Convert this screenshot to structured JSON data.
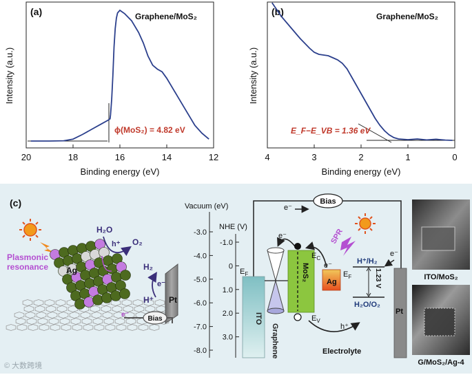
{
  "chart_data": [
    {
      "type": "line",
      "panel": "(a)",
      "title": "Graphene/MoS₂",
      "xlabel": "Binding energy (eV)",
      "ylabel": "Intensity (a.u.)",
      "xlim": [
        20,
        12
      ],
      "x_reversed": true,
      "xticks": [
        "20",
        "18",
        "16",
        "14",
        "12"
      ],
      "annotation": "ϕ(MoS₂) = 4.82 eV",
      "annotation_value": 4.82,
      "cutoff_energy": 16.4,
      "x": [
        19.8,
        19.0,
        18.4,
        18.0,
        17.6,
        17.2,
        16.8,
        16.5,
        16.42,
        16.4,
        16.35,
        16.3,
        16.25,
        16.2,
        16.15,
        16.1,
        16.0,
        15.8,
        15.5,
        15.2,
        15.0,
        14.8,
        14.6,
        14.4,
        14.2,
        14.0,
        13.8,
        13.5,
        13.2,
        13.0,
        12.8,
        12.5,
        12.3,
        12.2
      ],
      "y": [
        0.0,
        0.0,
        0.002,
        0.015,
        0.05,
        0.09,
        0.13,
        0.16,
        0.17,
        0.2,
        0.32,
        0.5,
        0.72,
        0.86,
        0.94,
        0.98,
        1.0,
        0.975,
        0.92,
        0.83,
        0.75,
        0.65,
        0.58,
        0.55,
        0.53,
        0.48,
        0.42,
        0.33,
        0.24,
        0.18,
        0.12,
        0.06,
        0.03,
        0.015
      ]
    },
    {
      "type": "line",
      "panel": "(b)",
      "title": "Graphene/MoS₂",
      "xlabel": "Binding energy (eV)",
      "ylabel": "Intensity (a.u.)",
      "xlim": [
        4,
        0
      ],
      "x_reversed": true,
      "xticks": [
        "4",
        "3",
        "2",
        "1",
        "0"
      ],
      "annotation": "E_F−E_VB = 1.36 eV",
      "annotation_value": 1.36,
      "x": [
        3.9,
        3.7,
        3.5,
        3.3,
        3.1,
        3.0,
        2.9,
        2.8,
        2.7,
        2.6,
        2.5,
        2.4,
        2.3,
        2.2,
        2.1,
        2.0,
        1.9,
        1.8,
        1.7,
        1.6,
        1.5,
        1.4,
        1.3,
        1.2,
        1.0,
        0.8,
        0.6,
        0.4,
        0.2,
        0.05
      ],
      "y": [
        1.0,
        0.9,
        0.82,
        0.74,
        0.67,
        0.64,
        0.625,
        0.62,
        0.615,
        0.6,
        0.585,
        0.56,
        0.52,
        0.46,
        0.4,
        0.34,
        0.28,
        0.22,
        0.16,
        0.11,
        0.07,
        0.04,
        0.02,
        0.01,
        0.005,
        0.01,
        0.003,
        0.008,
        0.002,
        0.0
      ]
    }
  ],
  "panel_c": {
    "label": "(c)",
    "illustration": {
      "h2o": "H₂O",
      "hplus": "h⁺",
      "o2": "O₂",
      "h2": "H₂",
      "eminus": "e⁻",
      "hplus_ion": "H⁺",
      "plasmonic_line1": "Plasmonic",
      "plasmonic_line2": "resonance",
      "ag": "Ag",
      "pt": "Pt",
      "bias": "Bias",
      "eminus_bottom": "e⁻"
    },
    "diagram": {
      "vacuum_label": "Vacuum (eV)",
      "nhe_label": "NHE (V)",
      "vacuum_ticks": [
        "-3.0",
        "-4.0",
        "-5.0",
        "-6.0",
        "-7.0",
        "-8.0"
      ],
      "nhe_ticks": [
        "-1.0",
        "0",
        "1.0",
        "2.0",
        "3.0"
      ],
      "bias_label": "Bias",
      "electron_top": "e⁻",
      "electron_left": "e⁻",
      "electron_right": "e⁻",
      "ef_left": "E",
      "ef_sub": "F",
      "ito": "ITO",
      "graphene": "Graphene",
      "mos2": "MoS₂",
      "ec": "E",
      "ec_sub": "C",
      "ev": "E",
      "ev_sub": "V",
      "spr": "SPR",
      "ag_e": "e⁻",
      "ag": "Ag",
      "ef_ag": "E",
      "ef_ag_sub": "F",
      "h_h2": "H⁺/H₂",
      "h2o_o2": "H₂O/O₂",
      "voltage": "1.23 V",
      "hplus": "h⁺",
      "pt": "Pt",
      "electrolyte": "Electrolyte"
    },
    "photos": [
      {
        "caption": "ITO/MoS₂"
      },
      {
        "caption": "G/MoS₂/Ag-4"
      }
    ],
    "watermark": "© 大数跨境"
  },
  "colors": {
    "curve": "#2b3f8c",
    "annotation": "#c0392b",
    "bottom_bg": "#e4eff3",
    "mos2": "#8cc63f",
    "ito": "#a8d4d6",
    "ag": "#e8501f",
    "pt": "#8a8a8a",
    "spr": "#b44fd1"
  }
}
